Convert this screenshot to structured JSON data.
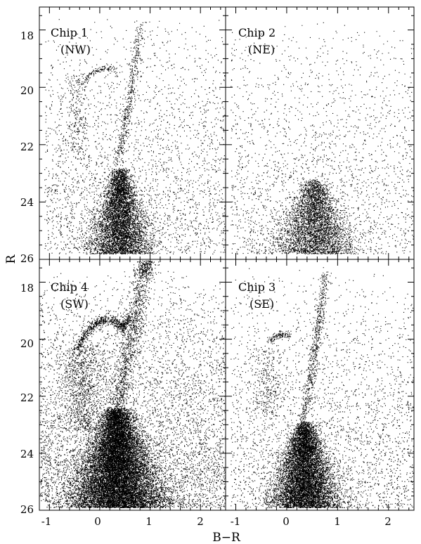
{
  "chart_data": {
    "type": "scatter",
    "xlabel": "B−R",
    "ylabel": "R",
    "xlim": [
      -1.2,
      2.5
    ],
    "ylim": [
      26,
      17.2
    ],
    "y_inverted": true,
    "grid": false,
    "x_ticks": [
      "-1",
      "0",
      "1",
      "2",
      "-1",
      "0",
      "1",
      "2"
    ],
    "y_ticks_top": [
      "18",
      "20",
      "22",
      "24",
      "26"
    ],
    "y_ticks_bottom": [
      "18",
      "20",
      "22",
      "24",
      "26"
    ],
    "panels": [
      {
        "label_line1": "Chip 1",
        "label_line2": "(NW)",
        "position": "top-left",
        "features": {
          "field": {
            "n": 2800,
            "x": [
              -1.1,
              2.5
            ],
            "y": [
              17.5,
              25.8
            ]
          },
          "main_sequence": {
            "n": 5200,
            "x_center": 0.4,
            "x_spread": 0.5,
            "y": [
              22.8,
              25.8
            ]
          },
          "red_giant_branch": {
            "n": 450,
            "points": [
              [
                0.35,
                22.6
              ],
              [
                0.5,
                21.3
              ],
              [
                0.6,
                20.3
              ],
              [
                0.7,
                19.1
              ],
              [
                0.82,
                17.8
              ]
            ],
            "width": 0.05
          },
          "horizontal_branch": {
            "n": 120,
            "points": [
              [
                -0.35,
                19.9
              ],
              [
                -0.15,
                19.5
              ],
              [
                0.1,
                19.3
              ],
              [
                0.3,
                19.4
              ]
            ],
            "width": 0.05
          },
          "blue_sequence": {
            "n": 260,
            "x_center": -0.45,
            "x_spread": 0.12,
            "y": [
              19.5,
              22.5
            ]
          }
        }
      },
      {
        "label_line1": "Chip 2",
        "label_line2": "(NE)",
        "position": "top-right",
        "features": {
          "field": {
            "n": 2200,
            "x": [
              -1.1,
              2.5
            ],
            "y": [
              17.5,
              25.8
            ]
          },
          "main_sequence": {
            "n": 3600,
            "x_center": 0.55,
            "x_spread": 0.65,
            "y": [
              23.2,
              25.8
            ]
          }
        }
      },
      {
        "label_line1": "Chip 4",
        "label_line2": "(SW)",
        "position": "bottom-left",
        "features": {
          "field": {
            "n": 6000,
            "x": [
              -1.2,
              2.5
            ],
            "y": [
              17.5,
              25.9
            ]
          },
          "main_sequence": {
            "n": 14000,
            "x_center": 0.35,
            "x_spread": 0.75,
            "y": [
              22.4,
              25.9
            ]
          },
          "red_giant_branch": {
            "n": 1400,
            "points": [
              [
                0.3,
                22.8
              ],
              [
                0.45,
                21.5
              ],
              [
                0.6,
                20.2
              ],
              [
                0.72,
                19.0
              ],
              [
                0.85,
                17.7
              ],
              [
                0.95,
                17.2
              ]
            ],
            "width": 0.1
          },
          "horizontal_branch": {
            "n": 700,
            "points": [
              [
                -0.45,
                20.3
              ],
              [
                -0.25,
                19.7
              ],
              [
                0.0,
                19.35
              ],
              [
                0.25,
                19.3
              ],
              [
                0.45,
                19.6
              ],
              [
                0.6,
                19.2
              ]
            ],
            "width": 0.09
          },
          "blue_sequence": {
            "n": 900,
            "x_center": -0.35,
            "x_spread": 0.2,
            "y": [
              20.2,
              23.2
            ]
          }
        }
      },
      {
        "label_line1": "Chip 3",
        "label_line2": "(SE)",
        "position": "bottom-right",
        "features": {
          "field": {
            "n": 3000,
            "x": [
              -1.1,
              2.5
            ],
            "y": [
              17.5,
              25.9
            ]
          },
          "main_sequence": {
            "n": 8000,
            "x_center": 0.35,
            "x_spread": 0.55,
            "y": [
              22.9,
              25.9
            ]
          },
          "red_giant_branch": {
            "n": 600,
            "points": [
              [
                0.3,
                22.9
              ],
              [
                0.45,
                21.6
              ],
              [
                0.55,
                20.4
              ],
              [
                0.65,
                19.2
              ],
              [
                0.75,
                17.6
              ]
            ],
            "width": 0.05
          },
          "horizontal_branch": {
            "n": 120,
            "points": [
              [
                -0.35,
                20.1
              ],
              [
                -0.15,
                19.8
              ],
              [
                0.05,
                19.9
              ]
            ],
            "width": 0.05
          },
          "blue_sequence": {
            "n": 250,
            "x_center": -0.4,
            "x_spread": 0.15,
            "y": [
              20.3,
              22.6
            ]
          }
        }
      }
    ]
  }
}
